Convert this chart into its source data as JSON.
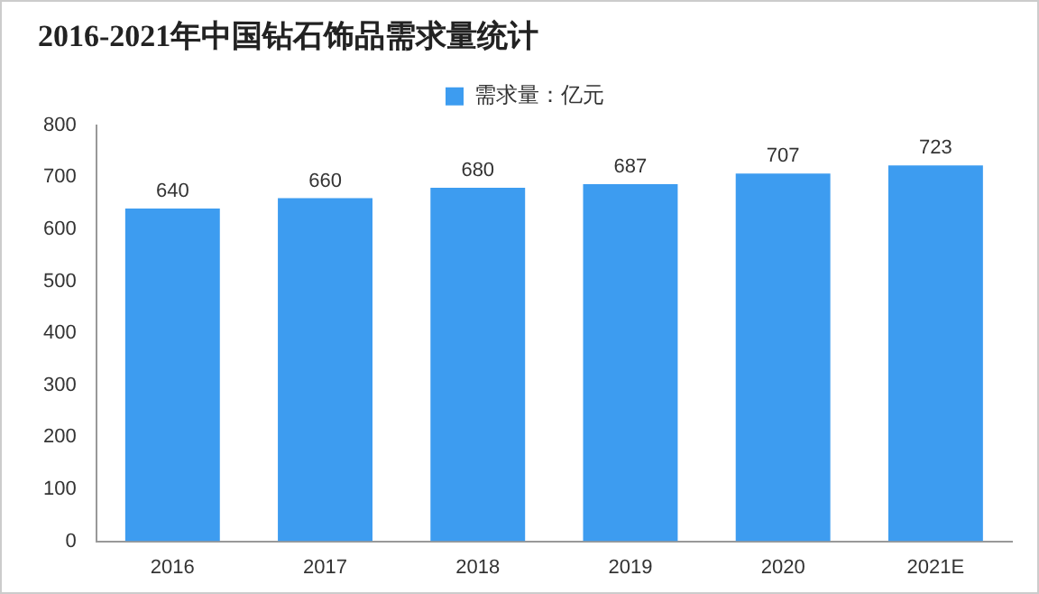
{
  "chart_data": {
    "type": "bar",
    "title": "2016-2021年中国钻石饰品需求量统计",
    "categories": [
      "2016",
      "2017",
      "2018",
      "2019",
      "2020",
      "2021E"
    ],
    "series": [
      {
        "name": "需求量：亿元",
        "color": "#3d9cf0",
        "values": [
          640,
          660,
          680,
          687,
          707,
          723
        ]
      }
    ],
    "ylim": [
      0,
      800
    ],
    "yticks": [
      0,
      100,
      200,
      300,
      400,
      500,
      600,
      700,
      800
    ],
    "grid": false,
    "legend": "top",
    "data_labels": true
  }
}
